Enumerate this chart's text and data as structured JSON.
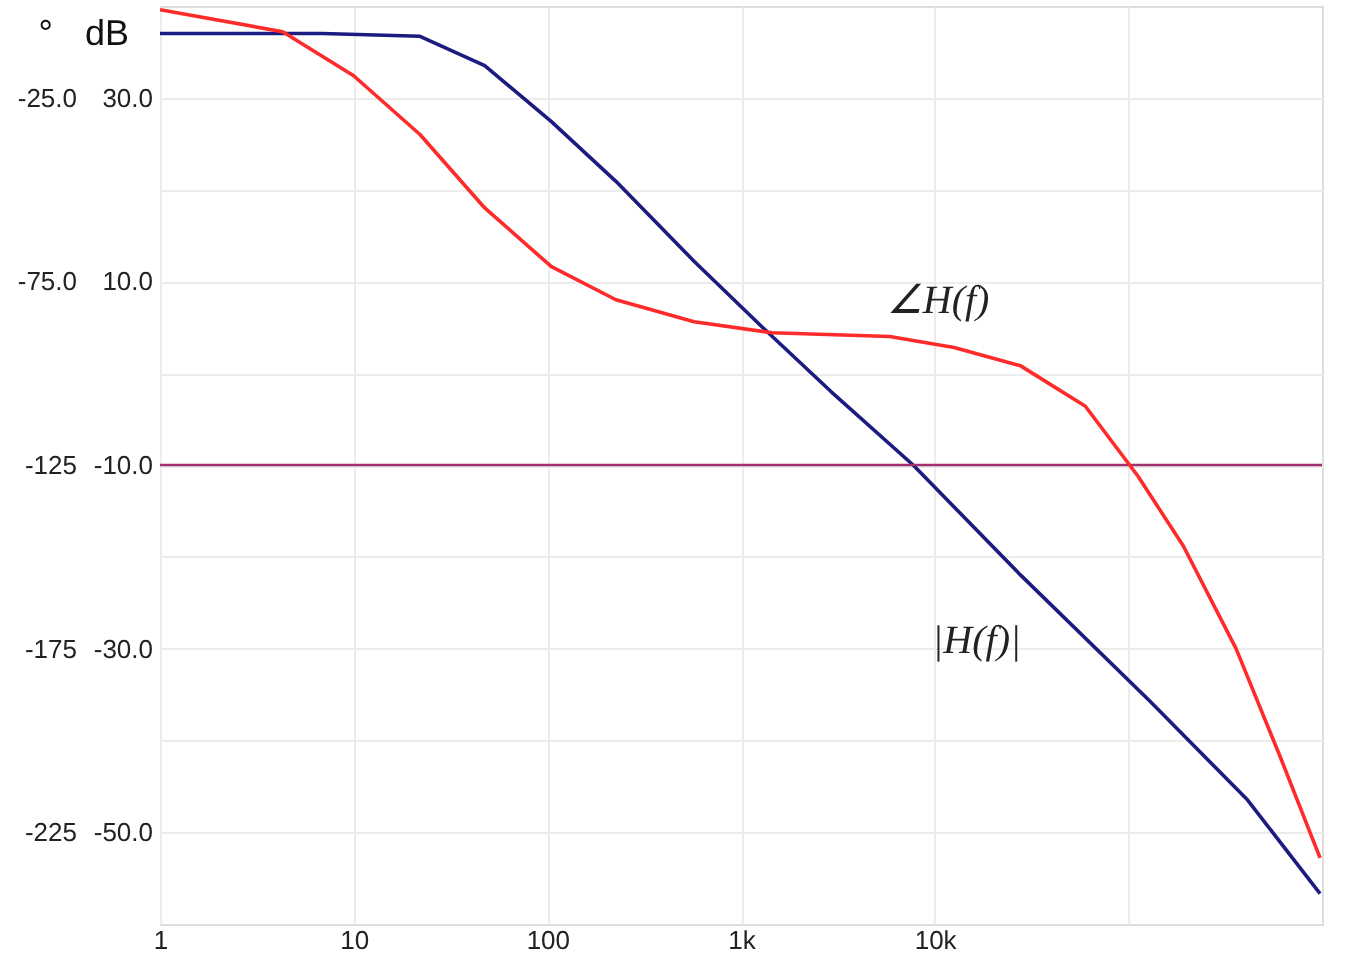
{
  "chart_data": {
    "type": "line",
    "ylabel": "dB",
    "y2label": "°",
    "log": "x",
    "grid": true,
    "line_style": "solid",
    "xlim": [
      1,
      1000000
    ],
    "xticks": [
      1,
      10,
      100,
      {
        "value": 1000,
        "label": "1k"
      },
      {
        "value": 10000,
        "label": "10k"
      },
      {
        "value": 100000,
        "label": null
      }
    ],
    "ylim": [
      -60,
      40
    ],
    "yticks": [
      {
        "value": 30,
        "label": "30.0"
      },
      {
        "value": 20,
        "label": null
      },
      {
        "value": 10,
        "label": "10.0"
      },
      {
        "value": 0,
        "label": null
      },
      {
        "value": -10,
        "label": "-10.0"
      },
      {
        "value": -20,
        "label": null
      },
      {
        "value": -30,
        "label": "-30.0"
      },
      {
        "value": -40,
        "label": null
      },
      {
        "value": -50,
        "label": "-50.0"
      }
    ],
    "y2lim": [
      -250,
      0
    ],
    "y2ticks": [
      {
        "value": -25,
        "label": "-25.0"
      },
      {
        "value": -75,
        "label": "-75.0"
      },
      -125,
      -175,
      -225
    ],
    "series": [
      {
        "name": "|H(f)|",
        "color": "#1c1c80",
        "x": [
          1,
          6.9,
          22,
          47.5,
          105,
          226,
          572,
          1290,
          2915,
          7740,
          27800,
          129000,
          413000,
          977000
        ],
        "values": [
          37.0,
          37.0,
          36.7,
          33.5,
          27.4,
          20.9,
          12.2,
          5.0,
          -2.0,
          -10.0,
          -22.0,
          -35.7,
          -46.5,
          -56.7
        ]
      },
      {
        "name": "∠H(f)",
        "color": "#ff2a2a",
        "axis": "y2",
        "x": [
          1,
          4.3,
          10,
          22,
          47.5,
          105,
          226,
          572,
          1450,
          5860,
          12600,
          27800,
          60000,
          112000,
          192000,
          360000,
          614000,
          977000
        ],
        "values": [
          -1,
          -7,
          -19,
          -35,
          -55,
          -71,
          -80,
          -86,
          -89,
          -90,
          -93,
          -98,
          -109,
          -128,
          -147,
          -175,
          -205,
          -232
        ]
      }
    ],
    "ref_lines": [
      {
        "axis": "y",
        "value": -10,
        "color": "#a0306e"
      }
    ]
  }
}
